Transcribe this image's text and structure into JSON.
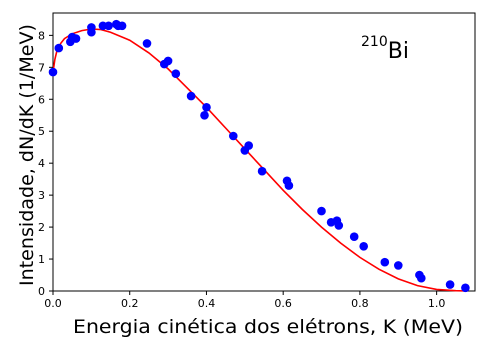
{
  "chart_data": {
    "type": "scatter",
    "xlabel": "Energia cinética dos elétrons, K (MeV)",
    "ylabel": "Intensidade, dN/dK (1/MeV)",
    "annotation": {
      "mass_number": "210",
      "symbol": "Bi"
    },
    "xlim": [
      0.0,
      1.1
    ],
    "ylim": [
      0,
      8.7
    ],
    "xticks": [
      0.0,
      0.2,
      0.4,
      0.6,
      0.8,
      1.0
    ],
    "xtick_labels": [
      "0.0",
      "0.2",
      "0.4",
      "0.6",
      "0.8",
      "1.0"
    ],
    "yticks": [
      0,
      1,
      2,
      3,
      4,
      5,
      6,
      7,
      8
    ],
    "ytick_labels": [
      "0",
      "1",
      "2",
      "3",
      "4",
      "5",
      "6",
      "7",
      "8"
    ],
    "grid": false,
    "series": [
      {
        "kind": "points",
        "color": "#0000ff",
        "x": [
          0.0,
          0.015,
          0.045,
          0.05,
          0.06,
          0.1,
          0.1,
          0.13,
          0.145,
          0.165,
          0.17,
          0.18,
          0.245,
          0.29,
          0.3,
          0.32,
          0.36,
          0.395,
          0.4,
          0.47,
          0.5,
          0.51,
          0.545,
          0.61,
          0.615,
          0.7,
          0.725,
          0.74,
          0.745,
          0.785,
          0.81,
          0.865,
          0.9,
          0.955,
          0.96,
          1.035,
          1.075
        ],
        "y": [
          6.85,
          7.6,
          7.8,
          7.95,
          7.9,
          8.1,
          8.25,
          8.3,
          8.3,
          8.35,
          8.3,
          8.3,
          7.75,
          7.1,
          7.2,
          6.8,
          6.1,
          5.5,
          5.75,
          4.85,
          4.4,
          4.55,
          3.75,
          3.45,
          3.3,
          2.5,
          2.15,
          2.2,
          2.05,
          1.7,
          1.4,
          0.9,
          0.8,
          0.5,
          0.4,
          0.2,
          0.1
        ]
      },
      {
        "kind": "curve",
        "color": "#ff0000",
        "x": [
          0.0,
          0.005,
          0.01,
          0.02,
          0.03,
          0.05,
          0.075,
          0.1,
          0.125,
          0.15,
          0.2,
          0.25,
          0.3,
          0.35,
          0.4,
          0.45,
          0.5,
          0.55,
          0.6,
          0.65,
          0.7,
          0.75,
          0.8,
          0.85,
          0.9,
          0.95,
          1.0,
          1.05,
          1.08
        ],
        "y": [
          6.85,
          7.25,
          7.5,
          7.75,
          7.9,
          8.05,
          8.15,
          8.2,
          8.18,
          8.1,
          7.85,
          7.45,
          6.95,
          6.35,
          5.75,
          5.1,
          4.45,
          3.8,
          3.15,
          2.55,
          2.0,
          1.5,
          1.05,
          0.68,
          0.38,
          0.17,
          0.05,
          0.01,
          0.0
        ]
      }
    ]
  }
}
